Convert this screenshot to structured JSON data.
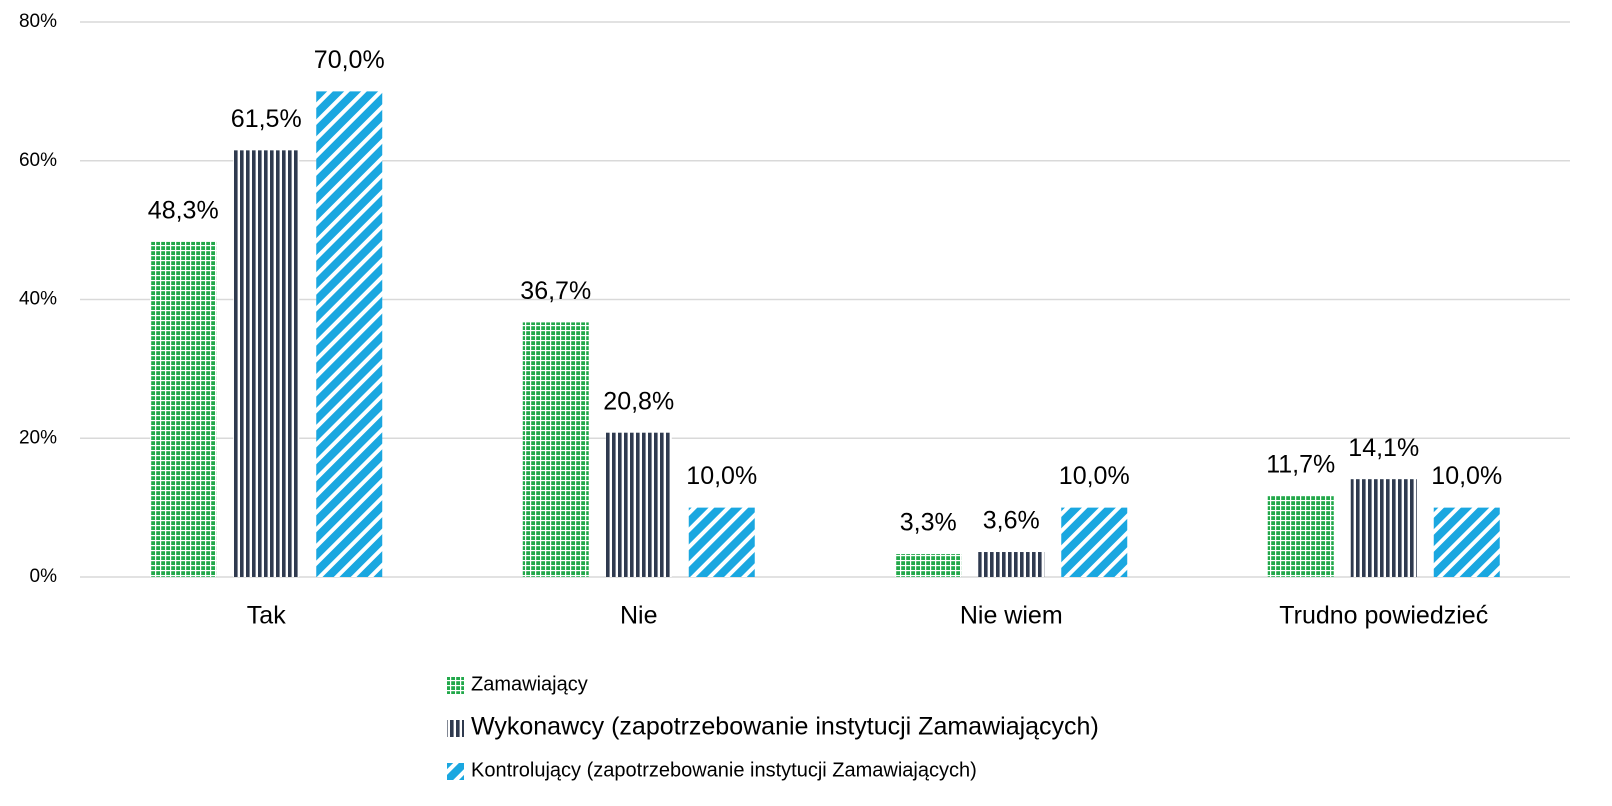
{
  "chart_data": {
    "type": "bar",
    "categories": [
      "Tak",
      "Nie",
      "Nie wiem",
      "Trudno powiedzieć"
    ],
    "series": [
      {
        "name": "Zamawiający",
        "color": "#22a84a",
        "values": [
          48.3,
          36.7,
          3.3,
          11.7
        ],
        "value_labels": [
          "48,3%",
          "36,7%",
          "3,3%",
          "11,7%"
        ]
      },
      {
        "name": "Wykonawcy (zapotrzebowanie instytucji Zamawiających)",
        "color": "#2f3a4f",
        "values": [
          61.5,
          20.8,
          3.6,
          14.1
        ],
        "value_labels": [
          "61,5%",
          "20,8%",
          "3,6%",
          "14,1%"
        ]
      },
      {
        "name": "Kontrolujący (zapotrzebowanie instytucji Zamawiających)",
        "color": "#1aa7e0",
        "values": [
          70.0,
          10.0,
          10.0,
          10.0
        ],
        "value_labels": [
          "70,0%",
          "10,0%",
          "10,0%",
          "10,0%"
        ]
      }
    ],
    "ylim": [
      0,
      80
    ],
    "yticks": [
      {
        "value": 0,
        "label": "0%"
      },
      {
        "value": 20,
        "label": "20%"
      },
      {
        "value": 40,
        "label": "40%"
      },
      {
        "value": 60,
        "label": "60%"
      },
      {
        "value": 80,
        "label": "80%"
      }
    ],
    "grid": true,
    "legend": "bottom"
  }
}
